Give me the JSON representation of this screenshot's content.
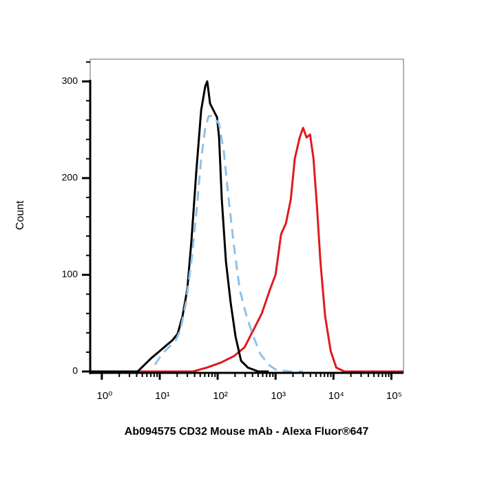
{
  "chart_data": {
    "type": "histogram-overlay",
    "xlabel": "Ab094575 CD32 Mouse mAb - Alexa Fluor®647",
    "ylabel": "Count",
    "xscale": "log",
    "xlim": [
      0.63,
      162000
    ],
    "xticks": [
      {
        "value": 1,
        "label": "10⁰"
      },
      {
        "value": 10,
        "label": "10¹"
      },
      {
        "value": 100,
        "label": "10²"
      },
      {
        "value": 1000,
        "label": "10³"
      },
      {
        "value": 10000,
        "label": "10⁴"
      },
      {
        "value": 100000,
        "label": "10⁵"
      }
    ],
    "xminor": [
      2,
      3,
      4,
      5,
      6,
      7,
      8,
      9,
      20,
      30,
      40,
      50,
      60,
      70,
      80,
      90,
      200,
      300,
      400,
      500,
      600,
      700,
      800,
      900,
      2000,
      3000,
      4000,
      5000,
      6000,
      7000,
      8000,
      9000,
      20000,
      30000,
      40000,
      50000,
      60000,
      70000,
      80000,
      90000
    ],
    "ylim": [
      0,
      323
    ],
    "yticks": [
      0,
      100,
      200,
      300
    ],
    "yminor": [
      20,
      40,
      60,
      80,
      120,
      140,
      160,
      180,
      220,
      240,
      260,
      280,
      320
    ],
    "series": [
      {
        "color": "#e0191b",
        "dashed": false,
        "x": [
          0.63,
          37.3,
          64.5,
          112,
          193,
          291,
          416,
          579,
          803,
          1000,
          1245,
          1510,
          1830,
          2150,
          2610,
          2990,
          3430,
          3940,
          4520,
          5180,
          5940,
          7190,
          8960,
          11200,
          15500,
          162000
        ],
        "values": [
          0,
          0,
          4,
          9,
          16,
          25,
          43,
          60,
          85,
          100,
          142,
          153,
          178,
          220,
          242,
          252,
          242,
          245,
          220,
          171,
          114,
          57,
          21,
          4,
          0,
          0
        ]
      },
      {
        "color": "#000000",
        "dashed": false,
        "x": [
          0.63,
          4.16,
          5.47,
          7.2,
          9.5,
          12.4,
          16.4,
          20.4,
          24.7,
          29.9,
          35.3,
          42.7,
          51.8,
          61.1,
          66.2,
          74.0,
          84.9,
          97.3,
          106,
          118,
          139,
          168,
          204,
          254,
          334,
          504,
          760
        ],
        "values": [
          0,
          0,
          7,
          14,
          20,
          26,
          32,
          39,
          57,
          85,
          135,
          206,
          270,
          295,
          300,
          277,
          270,
          263,
          242,
          178,
          114,
          71,
          36,
          11,
          4,
          0,
          0
        ]
      },
      {
        "color": "#8ec1e8",
        "dashed": true,
        "x": [
          8.25,
          10.9,
          14.3,
          18.8,
          22.8,
          28.3,
          35.3,
          42.7,
          51.8,
          61.1,
          70.0,
          84.9,
          106,
          128,
          155,
          193,
          240,
          316,
          416,
          547,
          760,
          1000,
          1730,
          2990
        ],
        "values": [
          7,
          18,
          25,
          32,
          43,
          71,
          114,
          163,
          220,
          252,
          264,
          264,
          256,
          227,
          178,
          128,
          85,
          57,
          36,
          18,
          7,
          2,
          0,
          0
        ]
      }
    ]
  }
}
